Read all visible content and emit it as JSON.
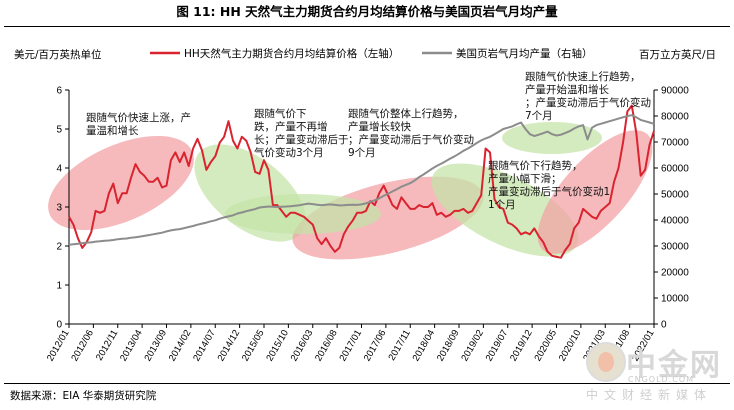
{
  "title": "图 11: HH 天然气主力期货合约月均结算价格与美国页岩气月均产量",
  "source": "数据来源：EIA 华泰期货研究院",
  "watermark": {
    "name": "中金网",
    "url": "CNGOLD.COM",
    "tagline": "中文财经新媒体"
  },
  "colors": {
    "hh": "#d9242f",
    "shale": "#8c8c8c",
    "red_ellipse": "#f2a0a4",
    "green_ellipse": "#c4e3a6"
  },
  "chart_data": {
    "type": "line",
    "x_ticks": [
      "2012/01",
      "2012/06",
      "2012/11",
      "2013/04",
      "2013/09",
      "2014/02",
      "2014/07",
      "2014/12",
      "2015/05",
      "2015/10",
      "2016/03",
      "2016/08",
      "2017/01",
      "2017/06",
      "2017/11",
      "2018/04",
      "2018/09",
      "2019/02",
      "2019/07",
      "2019/12",
      "2020/05",
      "2020/10",
      "2021/03",
      "2021/08",
      "2022/01"
    ],
    "ylabel_left": "美元/百万英热单位",
    "ylabel_right": "百万立方英尺/日",
    "ylim_left": [
      0,
      6
    ],
    "ylim_right": [
      0,
      90000
    ],
    "yticks_left": [
      0,
      1,
      2,
      3,
      4,
      5,
      6
    ],
    "yticks_right": [
      0,
      10000,
      20000,
      30000,
      40000,
      50000,
      60000,
      70000,
      80000,
      90000
    ],
    "legend_position": "top",
    "series": [
      {
        "name": "HH天然气主力期货合约月均结算价格（左轴）",
        "axis": "left",
        "values": [
          2.75,
          2.55,
          2.2,
          1.95,
          2.1,
          2.35,
          2.9,
          2.85,
          2.9,
          3.35,
          3.6,
          3.1,
          3.35,
          3.35,
          3.75,
          4.1,
          3.9,
          3.8,
          3.65,
          3.65,
          3.75,
          3.5,
          3.55,
          4.2,
          4.4,
          4.15,
          4.4,
          4.05,
          4.5,
          4.75,
          4.45,
          3.95,
          4.15,
          4.3,
          4.65,
          4.8,
          5.2,
          4.7,
          4.5,
          4.8,
          4.7,
          4.4,
          3.9,
          3.85,
          4.2,
          3.95,
          3.05,
          3.05,
          2.9,
          2.75,
          2.85,
          2.85,
          2.8,
          2.75,
          2.65,
          2.55,
          2.2,
          2.05,
          2.2,
          2.0,
          1.85,
          1.95,
          2.3,
          2.5,
          2.65,
          2.85,
          2.85,
          2.9,
          3.15,
          3.05,
          3.35,
          3.55,
          3.3,
          3.05,
          2.95,
          3.25,
          3.1,
          2.95,
          2.95,
          3.05,
          3.0,
          3.0,
          3.1,
          2.8,
          2.85,
          2.75,
          2.8,
          2.9,
          2.9,
          2.95,
          2.85,
          2.9,
          3.1,
          3.3,
          4.5,
          4.4,
          3.2,
          3.0,
          2.95,
          2.6,
          2.55,
          2.45,
          2.3,
          2.35,
          2.3,
          2.45,
          2.25,
          2.1,
          1.85,
          1.75,
          1.72,
          1.7,
          1.9,
          2.05,
          2.45,
          2.6,
          2.95,
          2.85,
          2.75,
          2.7,
          2.9,
          3.0,
          3.1,
          3.65,
          4.0,
          4.65,
          5.45,
          5.6,
          4.9,
          3.8,
          3.95,
          4.6,
          4.95
        ]
      },
      {
        "name": "美国页岩气月均产量（右轴）",
        "axis": "right",
        "values": [
          30500,
          30700,
          30900,
          31100,
          31300,
          31400,
          31700,
          31800,
          32000,
          32100,
          32300,
          32600,
          32800,
          32900,
          33200,
          33400,
          33600,
          33900,
          34200,
          34500,
          34800,
          35100,
          35600,
          36000,
          36300,
          36500,
          36900,
          37300,
          37700,
          38200,
          38600,
          39000,
          39500,
          39900,
          40500,
          41000,
          41400,
          41800,
          42500,
          42900,
          43400,
          43800,
          44200,
          44800,
          45000,
          45200,
          45100,
          45000,
          45100,
          45200,
          45300,
          45500,
          45700,
          46000,
          46300,
          46100,
          45900,
          45700,
          45900,
          46000,
          45800,
          45600,
          45700,
          45800,
          45900,
          45800,
          46000,
          46400,
          47000,
          47600,
          48300,
          49300,
          50100,
          51000,
          51900,
          52800,
          53500,
          54200,
          55200,
          56500,
          57500,
          58700,
          59800,
          60800,
          61700,
          62600,
          63600,
          64500,
          65500,
          66600,
          67500,
          68500,
          69600,
          70600,
          71400,
          72000,
          73000,
          74000,
          75000,
          75500,
          76000,
          76800,
          77500,
          75000,
          73000,
          72300,
          72800,
          73400,
          74000,
          73000,
          72500,
          72800,
          73500,
          74200,
          75200,
          76000,
          76500,
          71000,
          75500,
          76500,
          77000,
          77500,
          78000,
          78500,
          79000,
          79500,
          80000,
          80300,
          79500,
          78500,
          78000,
          77500,
          77000
        ]
      }
    ],
    "annotations": [
      "跟随气价快速上涨，产量温和增长",
      "跟随气价下跌，产量不再增长；产量变动滞后于气价变动3个月",
      "跟随气价整体上行趋势，产量增长较快；产量变动滞后于气价变动9个月",
      "跟随气价下行趋势，产量小幅下滑；产量变动滞后于气价变动11个月",
      "跟随气价快速上行趋势，产量开始温和增长；产量变动滞后于气价变动7个月"
    ]
  }
}
